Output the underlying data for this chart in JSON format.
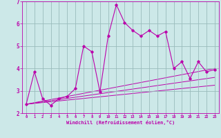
{
  "xlabel": "Windchill (Refroidissement éolien,°C)",
  "bg_color": "#cce8e8",
  "line_color": "#bb00aa",
  "grid_color": "#99bbbb",
  "xlim": [
    -0.5,
    23.5
  ],
  "ylim": [
    2,
    7
  ],
  "yticks": [
    2,
    3,
    4,
    5,
    6,
    7
  ],
  "xticks": [
    0,
    1,
    2,
    3,
    4,
    5,
    6,
    7,
    8,
    9,
    10,
    11,
    12,
    13,
    14,
    15,
    16,
    17,
    18,
    19,
    20,
    21,
    22,
    23
  ],
  "series": [
    [
      0,
      2.4
    ],
    [
      1,
      3.85
    ],
    [
      2,
      2.65
    ],
    [
      3,
      2.35
    ],
    [
      4,
      2.65
    ],
    [
      5,
      2.75
    ],
    [
      6,
      3.1
    ],
    [
      7,
      5.0
    ],
    [
      8,
      4.75
    ],
    [
      9,
      2.95
    ],
    [
      10,
      5.45
    ],
    [
      11,
      6.85
    ],
    [
      12,
      6.05
    ],
    [
      13,
      5.7
    ],
    [
      14,
      5.45
    ],
    [
      15,
      5.7
    ],
    [
      16,
      5.45
    ],
    [
      17,
      5.65
    ],
    [
      18,
      4.0
    ],
    [
      19,
      4.3
    ],
    [
      20,
      3.55
    ],
    [
      21,
      4.3
    ],
    [
      22,
      3.85
    ],
    [
      23,
      3.95
    ]
  ],
  "trend_lines": [
    {
      "x": [
        0,
        23
      ],
      "y": [
        2.4,
        4.0
      ]
    },
    {
      "x": [
        0,
        23
      ],
      "y": [
        2.4,
        3.6
      ]
    },
    {
      "x": [
        0,
        23
      ],
      "y": [
        2.4,
        3.25
      ]
    }
  ]
}
